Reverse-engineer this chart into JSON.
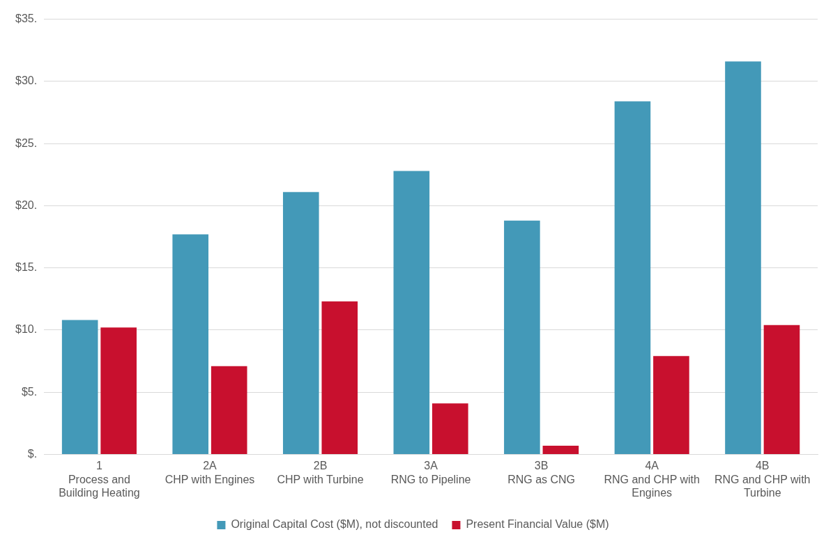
{
  "chart_data": {
    "type": "bar",
    "categories": [
      "1\nProcess and Building Heating",
      "2A\nCHP with Engines",
      "2B\nCHP with Turbine",
      "3A\nRNG to Pipeline",
      "3B\nRNG as CNG",
      "4A\nRNG and CHP with Engines",
      "4B\nRNG and CHP with Turbine"
    ],
    "series": [
      {
        "name": "Original Capital Cost ($M), not discounted",
        "color": "#4399b8",
        "values": [
          10.8,
          17.7,
          21.1,
          22.8,
          18.8,
          28.4,
          31.6
        ]
      },
      {
        "name": "Present Financial Value ($M)",
        "color": "#c8102e",
        "values": [
          10.2,
          7.1,
          12.3,
          4.1,
          0.7,
          7.9,
          10.4
        ]
      }
    ],
    "ylim": [
      0,
      35
    ],
    "yticks": [
      {
        "value": 0,
        "label": "$."
      },
      {
        "value": 5,
        "label": "$5."
      },
      {
        "value": 10,
        "label": "$10."
      },
      {
        "value": 15,
        "label": "$15."
      },
      {
        "value": 20,
        "label": "$20."
      },
      {
        "value": 25,
        "label": "$25."
      },
      {
        "value": 30,
        "label": "$30."
      },
      {
        "value": 35,
        "label": "$35."
      }
    ],
    "grid": "y",
    "legend": "bottom"
  }
}
